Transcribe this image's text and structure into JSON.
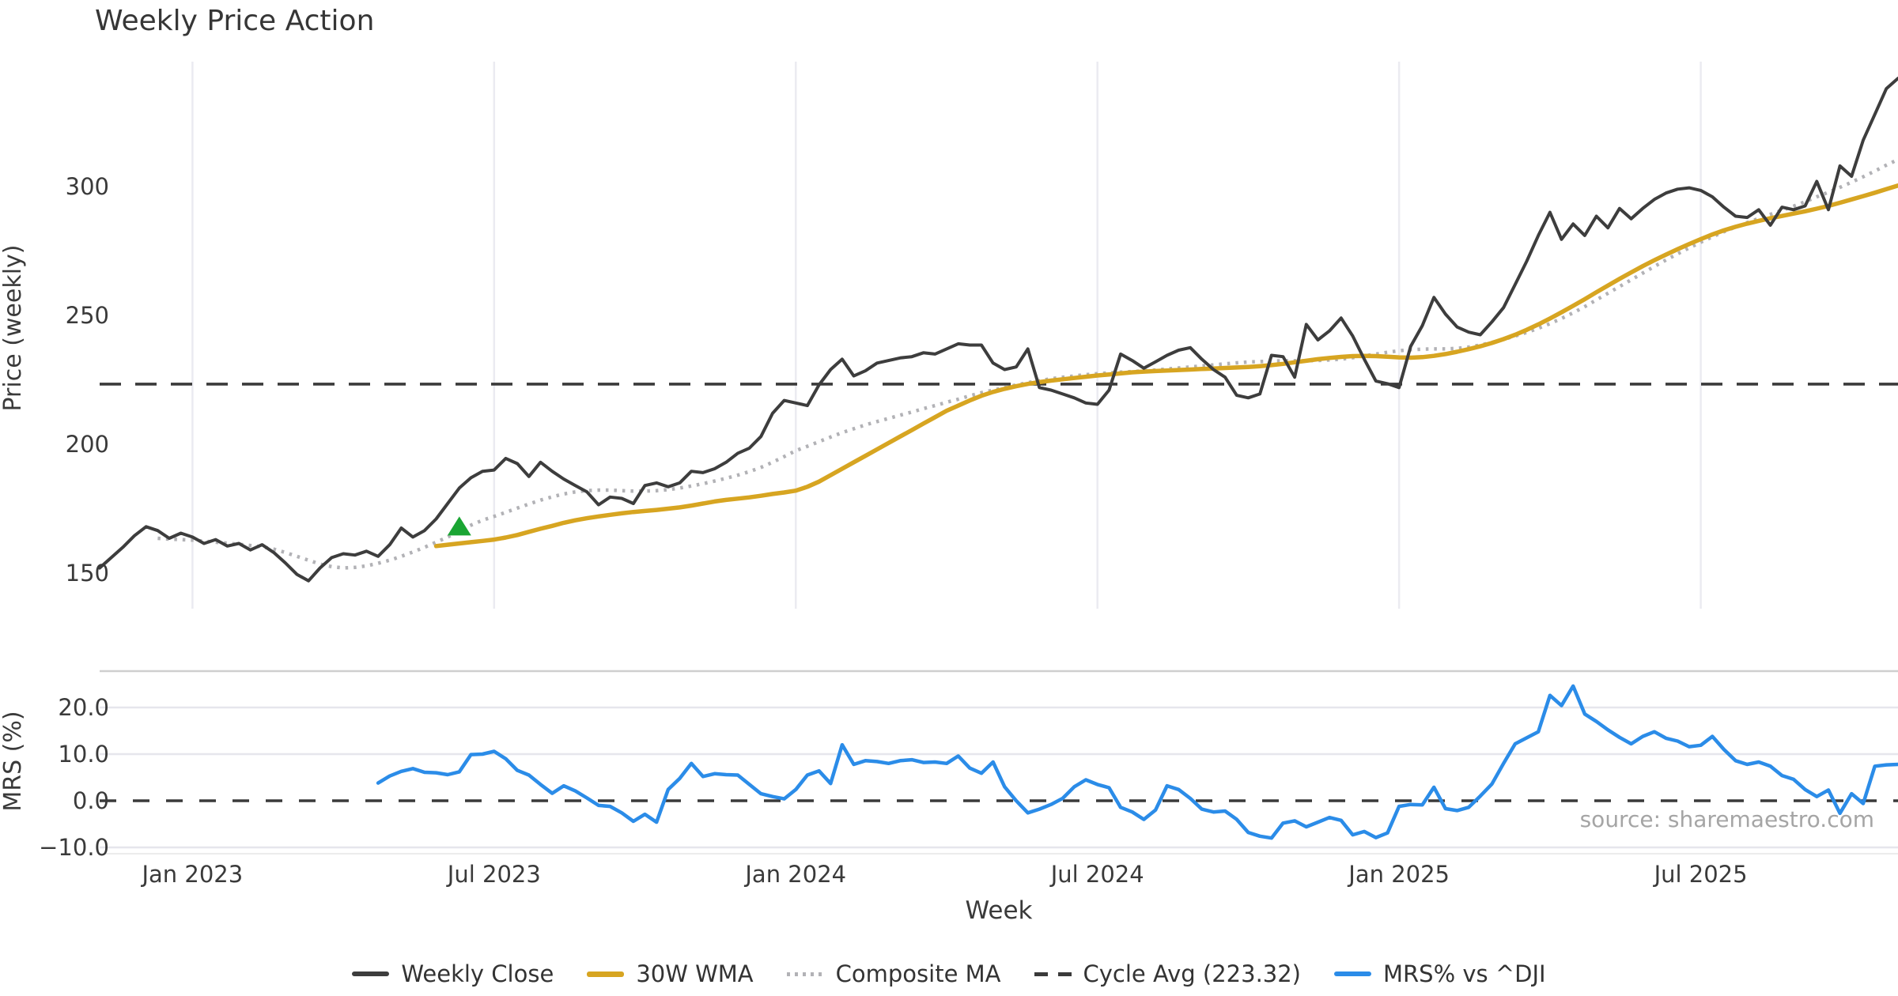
{
  "title": "Weekly Price Action",
  "axes": {
    "price_label": "Price (weekly)",
    "mrs_label": "MRS (%)",
    "x_label": "Week"
  },
  "source_text": "source: sharemaestro.com",
  "colors": {
    "close": "#3d3d3d",
    "wma": "#d7a521",
    "composite": "#b2b2b6",
    "cycle": "#3a3a3a",
    "mrs": "#2b8ce8",
    "marker": "#1aa533",
    "grid_main": "#ebebf1",
    "grid_lower": "#e6e6ec",
    "spine": "#cfcfcf",
    "spine_light": "#ececec",
    "text": "#3a3a3a",
    "source": "#a5a5a5"
  },
  "chart_data": {
    "type": "line",
    "title": "Weekly Price Action",
    "xlabel": "Week",
    "frequency": "weekly",
    "start_date": "2022-11-07",
    "weeks_total": 156,
    "x_ticks": [
      {
        "week": 8,
        "label": "Jan 2023"
      },
      {
        "week": 34,
        "label": "Jul 2023"
      },
      {
        "week": 60,
        "label": "Jan 2024"
      },
      {
        "week": 86,
        "label": "Jul 2024"
      },
      {
        "week": 112,
        "label": "Jan 2025"
      },
      {
        "week": 138,
        "label": "Jul 2025"
      }
    ],
    "main_panel": {
      "ylabel": "Price (weekly)",
      "ylim": [
        136,
        349
      ],
      "yticks": [
        300,
        250,
        200,
        150
      ],
      "ytick_labels": [
        "300",
        "250",
        "200",
        "150"
      ],
      "cycle_avg": 223.32,
      "grid": "vertical",
      "series": [
        {
          "name": "Weekly Close",
          "style": "solid",
          "color_key": "close",
          "width": 4,
          "start_week": 0,
          "values": [
            152,
            156,
            160,
            164.5,
            168,
            166.5,
            163.5,
            165.5,
            164,
            161.5,
            163,
            160.5,
            161.5,
            159,
            161,
            158,
            154,
            149.5,
            147,
            152,
            156,
            157.5,
            157,
            158.5,
            156.5,
            161,
            167.5,
            164,
            166.5,
            171,
            177,
            183,
            187,
            189.5,
            190,
            194.5,
            192.5,
            187.5,
            193,
            189.5,
            186.5,
            184,
            181.5,
            176.5,
            179.5,
            179,
            177,
            184,
            185,
            183.5,
            185,
            189.5,
            189,
            190.5,
            193,
            196.5,
            198.5,
            203,
            212,
            217,
            216,
            215,
            223,
            229,
            233,
            226.5,
            228.5,
            231.5,
            232.5,
            233.5,
            234,
            235.5,
            235,
            237,
            239,
            238.5,
            238.5,
            231.5,
            229,
            230,
            237,
            222,
            221,
            219.5,
            218,
            216,
            215.5,
            221,
            235,
            232.5,
            229.5,
            232,
            234.5,
            236.5,
            237.5,
            233,
            229,
            226,
            219,
            218,
            219.5,
            234.5,
            234,
            226,
            246.5,
            240.5,
            244,
            249,
            242,
            233,
            224.5,
            223.5,
            222,
            238,
            246,
            257,
            250.5,
            245.5,
            243.5,
            242.5,
            247.5,
            253,
            262,
            271,
            281,
            290,
            279.5,
            285.5,
            281,
            288.5,
            284,
            291.5,
            287.5,
            291.5,
            295,
            297.5,
            299,
            299.5,
            298.5,
            296,
            292,
            288.5,
            288,
            291,
            285,
            292,
            291,
            292.5,
            302,
            291,
            308,
            304,
            318,
            328,
            338,
            342
          ]
        },
        {
          "name": "30W WMA",
          "style": "solid",
          "color_key": "wma",
          "width": 5.5,
          "start_week": 29,
          "values": [
            160.5,
            161,
            161.5,
            162,
            162.5,
            163,
            163.8,
            164.8,
            166,
            167.2,
            168.3,
            169.5,
            170.5,
            171.3,
            172,
            172.6,
            173.2,
            173.7,
            174.1,
            174.5,
            175,
            175.5,
            176.2,
            177,
            177.8,
            178.4,
            178.9,
            179.4,
            180,
            180.7,
            181.3,
            182,
            183.5,
            185.5,
            188,
            190.5,
            193,
            195.5,
            198,
            200.5,
            203,
            205.5,
            208,
            210.5,
            213,
            215,
            217,
            218.8,
            220.3,
            221.5,
            222.5,
            223.4,
            224.1,
            224.7,
            225.2,
            225.7,
            226.2,
            226.7,
            227.1,
            227.5,
            227.9,
            228.2,
            228.4,
            228.6,
            228.8,
            229,
            229.2,
            229.4,
            229.6,
            229.8,
            230,
            230.3,
            230.7,
            231.2,
            231.8,
            232.4,
            233,
            233.5,
            233.9,
            234.2,
            234.3,
            234.2,
            234,
            233.7,
            233.6,
            233.8,
            234.3,
            235,
            235.9,
            236.9,
            238,
            239.3,
            240.8,
            242.5,
            244.4,
            246.5,
            248.8,
            251.2,
            253.7,
            256.3,
            259,
            261.6,
            264.2,
            266.7,
            269.1,
            271.4,
            273.6,
            275.7,
            277.7,
            279.6,
            281.4,
            283,
            284.4,
            285.6,
            286.7,
            287.7,
            288.6,
            289.5,
            290.4,
            291.4,
            292.5,
            293.7,
            295,
            296.3,
            297.6,
            299,
            300.4
          ]
        },
        {
          "name": "Composite MA",
          "style": "dotted",
          "color_key": "composite",
          "width": 4.5,
          "start_week": 5,
          "values": [
            163.5,
            163.2,
            163,
            162.8,
            162.4,
            162,
            161.6,
            161.2,
            160.7,
            160.2,
            159.3,
            158,
            156.5,
            155,
            153.5,
            152.5,
            152,
            152.2,
            152.8,
            153.8,
            155,
            156.5,
            158.2,
            160,
            162,
            164,
            166.3,
            168.6,
            170.5,
            172,
            173.6,
            175.2,
            176.8,
            178.3,
            179.6,
            180.7,
            181.5,
            182,
            182.2,
            182.2,
            182,
            181.8,
            181.8,
            182,
            182.4,
            183,
            183.8,
            184.7,
            185.7,
            186.8,
            188,
            189.4,
            191,
            193,
            195.2,
            197.5,
            199.2,
            201,
            202.8,
            204.5,
            206,
            207.5,
            208.8,
            210,
            211.3,
            212.5,
            213.8,
            215,
            216.3,
            217.5,
            218.8,
            220,
            221,
            222,
            223,
            223.9,
            224.7,
            225.4,
            226,
            226.5,
            227,
            227.4,
            227.7,
            228,
            228.2,
            228.5,
            228.8,
            229.2,
            229.6,
            230,
            230.4,
            230.8,
            231.2,
            231.6,
            231.9,
            232.1,
            232.3,
            232.4,
            232.4,
            232.4,
            232.5,
            232.7,
            233,
            233.6,
            234.3,
            235,
            235.7,
            236.3,
            236.7,
            236.9,
            237,
            237,
            237.2,
            237.7,
            238.5,
            239.5,
            240.7,
            242,
            243.4,
            245,
            246.8,
            248.8,
            251,
            253.4,
            256,
            258.6,
            261.2,
            263.8,
            266.4,
            269,
            271.5,
            273.9,
            276.2,
            278.4,
            280.5,
            282.5,
            284.3,
            286,
            287.6,
            289.2,
            290.8,
            292.4,
            294.1,
            296,
            297.8,
            299.7,
            301.7,
            303.8,
            306,
            308.3,
            310.5
          ]
        }
      ],
      "marker": {
        "type": "triangle-up",
        "week": 31,
        "value": 168,
        "color_key": "marker"
      }
    },
    "lower_panel": {
      "ylabel": "MRS (%)",
      "ylim": [
        -11.5,
        27.8
      ],
      "yticks": [
        20,
        10,
        0,
        -10
      ],
      "ytick_labels": [
        "20.0",
        "10.0",
        "0.0",
        "−10.0"
      ],
      "zero_line": 0,
      "grid": "horizontal",
      "series": [
        {
          "name": "MRS% vs ^DJI",
          "style": "solid",
          "color_key": "mrs",
          "width": 4.5,
          "start_week": 24,
          "values": [
            3.8,
            5.3,
            6.3,
            6.9,
            6.1,
            6.0,
            5.6,
            6.2,
            9.9,
            10.0,
            10.6,
            9.0,
            6.5,
            5.5,
            3.5,
            1.6,
            3.2,
            2.1,
            0.6,
            -1.0,
            -1.2,
            -2.6,
            -4.4,
            -2.9,
            -4.6,
            2.4,
            4.8,
            8.0,
            5.2,
            5.8,
            5.6,
            5.5,
            3.5,
            1.5,
            0.9,
            0.4,
            2.4,
            5.5,
            6.4,
            3.7,
            12.0,
            7.8,
            8.6,
            8.4,
            8.0,
            8.6,
            8.8,
            8.2,
            8.3,
            8.0,
            9.6,
            7.0,
            5.9,
            8.3,
            3.0,
            0.0,
            -2.6,
            -1.8,
            -0.8,
            0.5,
            3.0,
            4.5,
            3.5,
            2.8,
            -1.4,
            -2.4,
            -4.0,
            -2.0,
            3.2,
            2.4,
            0.5,
            -1.8,
            -2.4,
            -2.2,
            -4.0,
            -6.8,
            -7.6,
            -8.0,
            -4.8,
            -4.3,
            -5.6,
            -4.6,
            -3.6,
            -4.2,
            -7.3,
            -6.6,
            -7.9,
            -6.9,
            -1.2,
            -0.8,
            -0.9,
            2.9,
            -1.7,
            -2.1,
            -1.4,
            1.0,
            3.6,
            8.0,
            12.2,
            13.5,
            14.8,
            22.6,
            20.4,
            24.6,
            18.6,
            17.0,
            15.2,
            13.6,
            12.2,
            13.8,
            14.8,
            13.4,
            12.8,
            11.6,
            11.9,
            13.8,
            11.0,
            8.6,
            7.8,
            8.3,
            7.4,
            5.4,
            4.6,
            2.4,
            0.9,
            2.3,
            -2.7,
            1.5,
            -0.6,
            7.4,
            7.7,
            7.8
          ]
        }
      ]
    },
    "legend": [
      {
        "label": "Weekly Close",
        "style": "solid",
        "color_key": "close"
      },
      {
        "label": "30W WMA",
        "style": "solid",
        "color_key": "wma"
      },
      {
        "label": "Composite MA",
        "style": "dotted",
        "color_key": "composite"
      },
      {
        "label": "Cycle Avg (223.32)",
        "style": "dashed",
        "color_key": "cycle"
      },
      {
        "label": "MRS% vs ^DJI",
        "style": "solid",
        "color_key": "mrs"
      }
    ],
    "legend_position": "bottom-center"
  }
}
